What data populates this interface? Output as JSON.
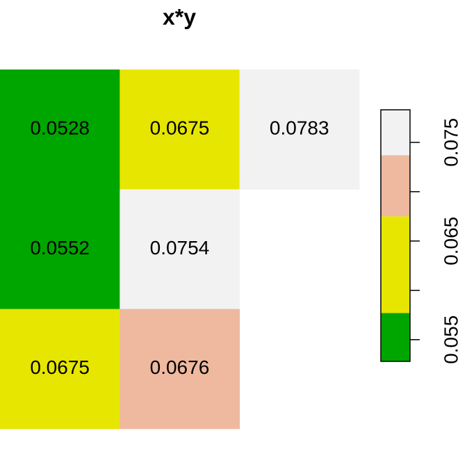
{
  "chart_data": {
    "type": "heatmap",
    "title": "x*y",
    "values": [
      [
        0.0528,
        0.0675,
        0.0783
      ],
      [
        0.0552,
        0.0754,
        null
      ],
      [
        0.0675,
        0.0676,
        null
      ]
    ],
    "breaks": [
      0.0528,
      0.0577,
      0.0675,
      0.0737,
      0.0783
    ],
    "colors": [
      "#00A600",
      "#E6E600",
      "#EEB99F",
      "#F2F2F2"
    ],
    "ylim": [
      0.0528,
      0.0783
    ],
    "yticks": [
      0.055,
      0.065,
      0.075
    ],
    "minor_ticks": [
      0.06,
      0.07
    ]
  }
}
